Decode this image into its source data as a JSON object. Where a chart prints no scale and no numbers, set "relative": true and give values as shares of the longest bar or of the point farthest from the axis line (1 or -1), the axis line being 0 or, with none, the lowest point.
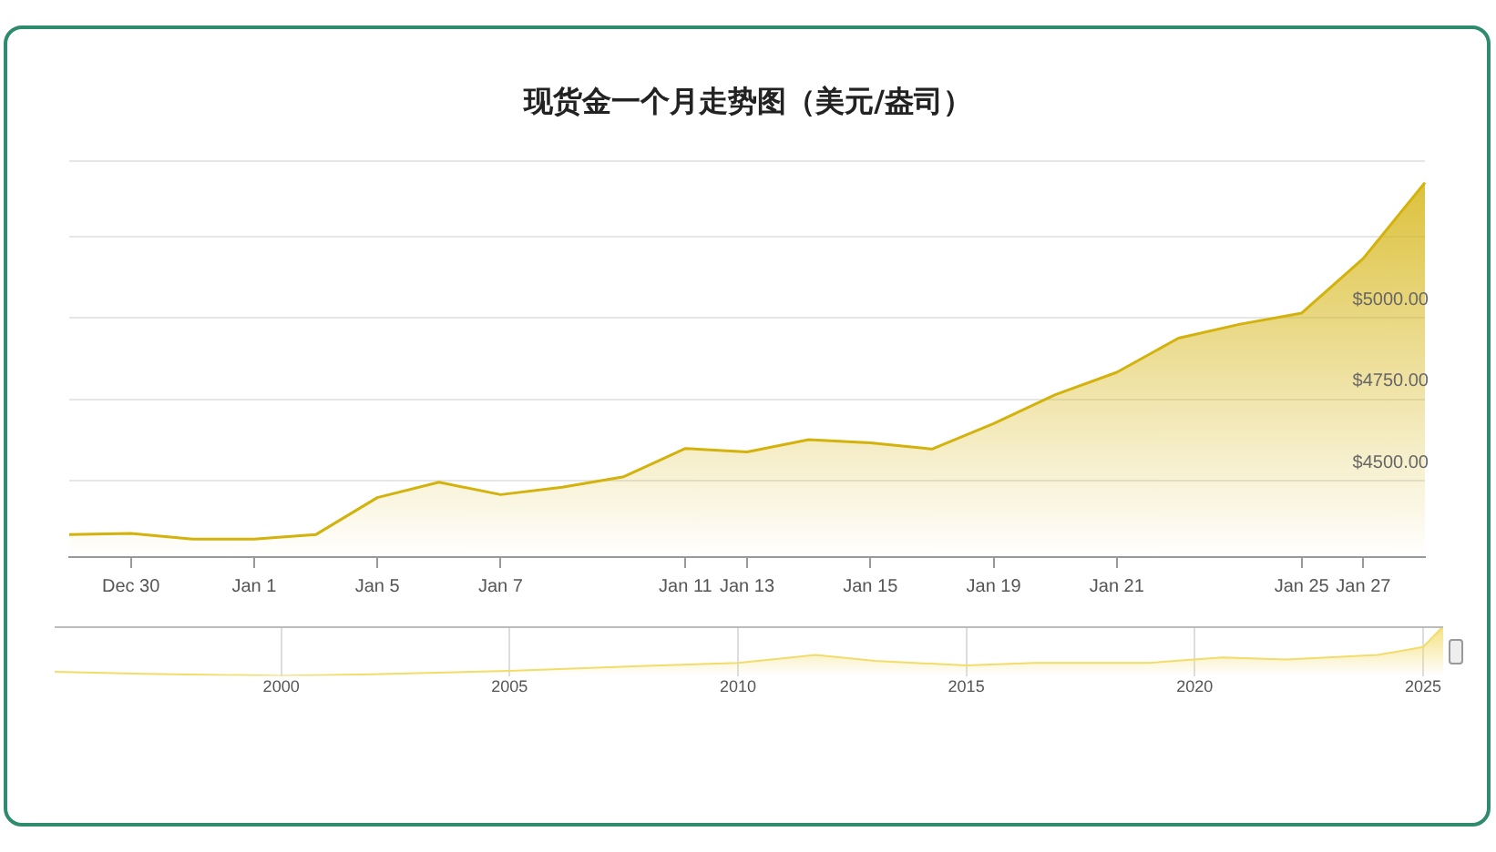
{
  "chart_data": [
    {
      "type": "area",
      "title": "现货金一个月走势图（美元/盎司）",
      "categories": [
        null,
        "Dec 30",
        null,
        "Jan 1",
        null,
        "Jan 5",
        null,
        "Jan 7",
        null,
        null,
        "Jan 11",
        "Jan 13",
        null,
        "Jan 15",
        null,
        "Jan 19",
        null,
        "Jan 21",
        null,
        null,
        "Jan 25",
        "Jan 27",
        null
      ],
      "series": [
        {
          "color": "#d4b20c",
          "values": [
            4334,
            4338,
            4320,
            4320,
            4334,
            4448,
            4495,
            4457,
            4480,
            4512,
            4599,
            4588,
            4626,
            4616,
            4597,
            4675,
            4764,
            4833,
            4938,
            4981,
            5015,
            5183,
            5416
          ]
        }
      ],
      "ylim": [
        4265,
        5485
      ],
      "yticks": [
        {
          "value": 4500,
          "label": "$4500.00"
        },
        {
          "value": 4750,
          "label": "$4750.00"
        },
        {
          "value": 5000,
          "label": "$5000.00"
        },
        {
          "value": 5250,
          "label": null
        }
      ],
      "grid": "y",
      "legend": false
    },
    {
      "type": "area",
      "relative": true,
      "x": [
        1995.04,
        1997,
        2000,
        2002,
        2005,
        2008,
        2010,
        2011.7,
        2013,
        2015,
        2016.5,
        2019,
        2020.6,
        2022,
        2024,
        2025,
        2025.44
      ],
      "series": [
        {
          "color": "#f2dc6a",
          "values": [
            0.08,
            0.04,
            0,
            0.03,
            0.1,
            0.2,
            0.26,
            0.42,
            0.3,
            0.21,
            0.26,
            0.26,
            0.37,
            0.33,
            0.42,
            0.58,
            1
          ]
        }
      ],
      "xlim": [
        1995.04,
        2025.44
      ],
      "xticks": [
        2000,
        2005,
        2010,
        2015,
        2020,
        2025
      ],
      "grid": "x",
      "legend": false
    }
  ]
}
